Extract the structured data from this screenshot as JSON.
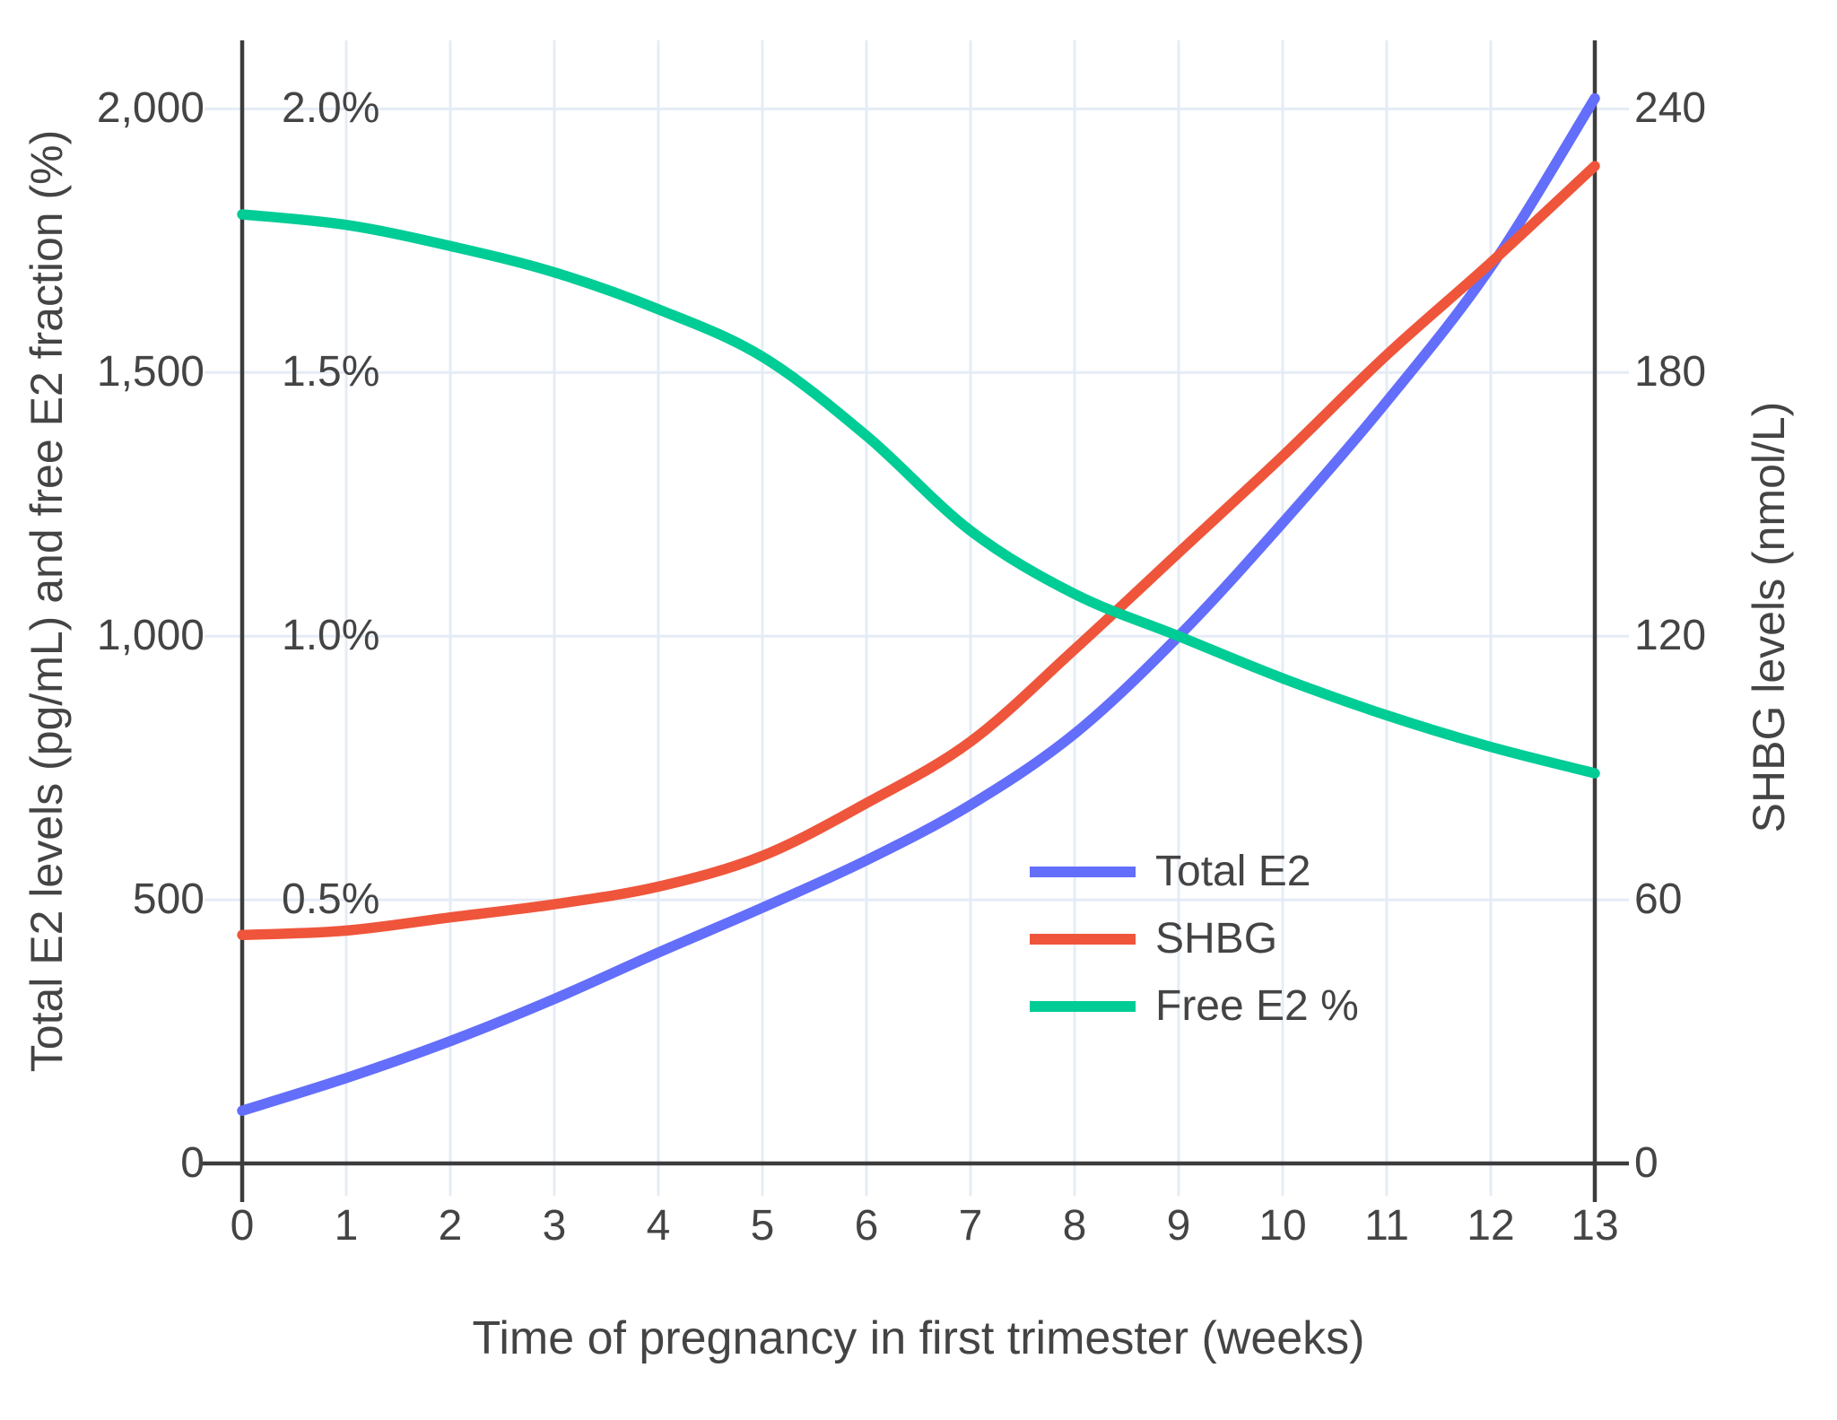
{
  "chart_data": {
    "type": "line",
    "title": "",
    "xlabel": "Time of pregnancy in first trimester (weeks)",
    "ylabel_left": "Total E2 levels (pg/mL) and free E2 fraction (%)",
    "ylabel_right": "SHBG levels (nmol/L)",
    "x_weeks": [
      0,
      1,
      2,
      3,
      4,
      5,
      6,
      7,
      8,
      9,
      10,
      11,
      12,
      13
    ],
    "series": [
      {
        "name": "Total E2",
        "color": "#636EFA",
        "axis": "left_pg_ml",
        "unit": "pg/mL",
        "values": [
          100,
          162,
          232,
          312,
          400,
          485,
          575,
          680,
          815,
          1000,
          1215,
          1445,
          1700,
          2020
        ]
      },
      {
        "name": "SHBG",
        "color": "#EF553B",
        "axis": "right_nmol_l",
        "unit": "nmol/L",
        "values": [
          52,
          53,
          56,
          59,
          63,
          70,
          82,
          96,
          117,
          139,
          161,
          184,
          205,
          227
        ]
      },
      {
        "name": "Free E2 %",
        "color": "#00CC96",
        "axis": "left_percent",
        "unit": "%",
        "values": [
          1.8,
          1.78,
          1.74,
          1.69,
          1.62,
          1.53,
          1.38,
          1.2,
          1.08,
          1.0,
          0.92,
          0.85,
          0.79,
          0.74
        ]
      }
    ],
    "left_axis": {
      "ticks": [
        0,
        500,
        1000,
        1500,
        2000
      ],
      "labels": [
        "0",
        "500",
        "1,000",
        "1,500",
        "2,000"
      ],
      "range": [
        0,
        2130
      ]
    },
    "left_percent_ticks": {
      "values": [
        500,
        1000,
        1500,
        2000
      ],
      "labels": [
        "0.5%",
        "1.0%",
        "1.5%",
        "2.0%"
      ]
    },
    "right_axis": {
      "ticks": [
        0,
        60,
        120,
        180,
        240
      ],
      "labels": [
        "0",
        "60",
        "120",
        "180",
        "240"
      ],
      "range": [
        0,
        255.6
      ]
    },
    "x_axis": {
      "ticks": [
        0,
        1,
        2,
        3,
        4,
        5,
        6,
        7,
        8,
        9,
        10,
        11,
        12,
        13
      ],
      "labels": [
        "0",
        "1",
        "2",
        "3",
        "4",
        "5",
        "6",
        "7",
        "8",
        "9",
        "10",
        "11",
        "12",
        "13"
      ],
      "range": [
        0,
        13
      ]
    },
    "legend_position": "inside lower-right",
    "grid": true
  },
  "styles": {
    "background": "#FFFFFF",
    "grid_color": "#E5ECF6",
    "axis_color": "#3C3C3C",
    "text_color": "#444444"
  }
}
